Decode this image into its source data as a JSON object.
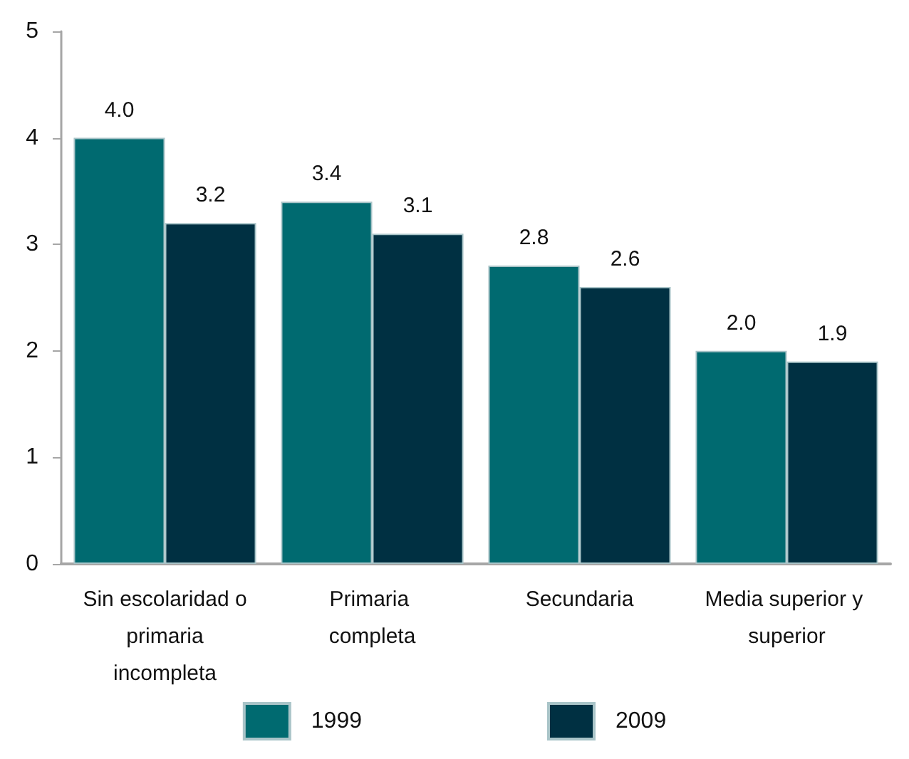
{
  "chart_data": {
    "type": "bar",
    "categories": [
      "Sin escolaridad o primaria incompleta",
      "Primaria completa",
      "Secundaria",
      "Media superior y superior"
    ],
    "series": [
      {
        "name": "1999",
        "color": "#006a70",
        "values": [
          4.0,
          3.4,
          2.8,
          2.0
        ],
        "value_labels": [
          "4.0",
          "3.4",
          "2.8",
          "2.0"
        ]
      },
      {
        "name": "2009",
        "color": "#003042",
        "values": [
          3.2,
          3.1,
          2.6,
          1.9
        ],
        "value_labels": [
          "3.2",
          "3.1",
          "2.6",
          "1.9"
        ]
      }
    ],
    "ylim": [
      0,
      5
    ],
    "yticks": [
      0,
      1,
      2,
      3,
      4,
      5
    ],
    "grid": false,
    "legend": "bottom"
  }
}
